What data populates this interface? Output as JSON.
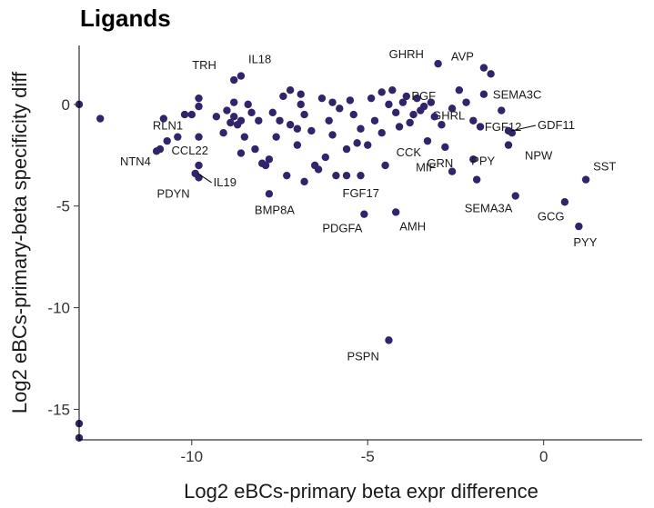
{
  "chart_data": {
    "type": "scatter",
    "title": "Ligands",
    "xlabel": "Log2 eBCs-primary beta expr difference",
    "ylabel": "Log2 eBCs-primary-beta specificity diff",
    "xlim": [
      -13.2,
      2.8
    ],
    "ylim": [
      -16.5,
      2.9
    ],
    "x_ticks": [
      -10,
      -5,
      0
    ],
    "y_ticks": [
      0,
      -5,
      -10,
      -15
    ],
    "point_color": "#33236a",
    "points": [
      {
        "x": -13.2,
        "y": 0.0
      },
      {
        "x": -12.6,
        "y": -0.7
      },
      {
        "x": -13.2,
        "y": -15.7
      },
      {
        "x": -13.2,
        "y": -16.4
      },
      {
        "x": -8.8,
        "y": 1.2,
        "label": "TRH"
      },
      {
        "x": -8.6,
        "y": 1.4,
        "label": "IL18"
      },
      {
        "x": -3.0,
        "y": 2.0,
        "label": "GHRH"
      },
      {
        "x": -1.7,
        "y": 1.8,
        "label": "AVP"
      },
      {
        "x": -1.5,
        "y": 1.5
      },
      {
        "x": -1.7,
        "y": 0.5,
        "label": "SEMA3C"
      },
      {
        "x": -3.6,
        "y": 0.3,
        "label": "PGF"
      },
      {
        "x": -2.6,
        "y": -0.2,
        "label": "GHRL"
      },
      {
        "x": -1.2,
        "y": -0.3
      },
      {
        "x": -0.9,
        "y": -1.4,
        "label": "FGF12"
      },
      {
        "x": -1.0,
        "y": -1.3,
        "label": "GDF11"
      },
      {
        "x": -1.0,
        "y": -2.0,
        "label": "NPW"
      },
      {
        "x": -3.3,
        "y": -1.8
      },
      {
        "x": -2.8,
        "y": -2.1,
        "label": "GRN"
      },
      {
        "x": -2.0,
        "y": -2.7
      },
      {
        "x": -1.9,
        "y": -3.7,
        "label": "PPY"
      },
      {
        "x": -2.6,
        "y": -3.3,
        "label": "MIF"
      },
      {
        "x": -0.8,
        "y": -4.5,
        "label": "SEMA3A"
      },
      {
        "x": 0.6,
        "y": -4.8,
        "label": "GCG"
      },
      {
        "x": 1.2,
        "y": -3.7,
        "label": "SST"
      },
      {
        "x": 1.0,
        "y": -6.0,
        "label": "PYY"
      },
      {
        "x": -4.5,
        "y": -3.0,
        "label": "CCK"
      },
      {
        "x": -5.2,
        "y": -3.5,
        "label": "FGF17"
      },
      {
        "x": -5.1,
        "y": -5.4,
        "label": "PDGFA"
      },
      {
        "x": -4.2,
        "y": -5.3,
        "label": "AMH"
      },
      {
        "x": -4.4,
        "y": -11.6,
        "label": "PSPN"
      },
      {
        "x": -7.8,
        "y": -4.4,
        "label": "BMP8A"
      },
      {
        "x": -10.8,
        "y": -0.7,
        "label": "RLN1"
      },
      {
        "x": -10.9,
        "y": -2.2,
        "label": "NTN4"
      },
      {
        "x": -9.8,
        "y": -3.0,
        "label": "CCL22"
      },
      {
        "x": -9.8,
        "y": -3.6,
        "label": "PDYN"
      },
      {
        "x": -9.9,
        "y": -3.4,
        "label": "IL19"
      },
      {
        "x": -11.0,
        "y": -2.3
      },
      {
        "x": -10.7,
        "y": -1.8
      },
      {
        "x": -10.4,
        "y": -1.6
      },
      {
        "x": -10.2,
        "y": -0.5
      },
      {
        "x": -10.0,
        "y": -0.5
      },
      {
        "x": -9.8,
        "y": 0.3
      },
      {
        "x": -9.8,
        "y": -0.1
      },
      {
        "x": -9.8,
        "y": -1.6
      },
      {
        "x": -9.0,
        "y": -0.3
      },
      {
        "x": -8.8,
        "y": -0.6
      },
      {
        "x": -8.7,
        "y": -1.0
      },
      {
        "x": -8.6,
        "y": -0.8
      },
      {
        "x": -8.5,
        "y": -1.6
      },
      {
        "x": -8.6,
        "y": -2.4
      },
      {
        "x": -8.4,
        "y": 0.0
      },
      {
        "x": -8.3,
        "y": -0.4
      },
      {
        "x": -8.1,
        "y": -0.8
      },
      {
        "x": -8.0,
        "y": -2.9
      },
      {
        "x": -7.8,
        "y": -2.7
      },
      {
        "x": -7.9,
        "y": -3.0
      },
      {
        "x": -7.7,
        "y": -0.4
      },
      {
        "x": -7.5,
        "y": -0.8
      },
      {
        "x": -7.4,
        "y": 0.4
      },
      {
        "x": -7.2,
        "y": 0.7
      },
      {
        "x": -7.2,
        "y": -1.0
      },
      {
        "x": -7.0,
        "y": -2.0
      },
      {
        "x": -6.9,
        "y": 0.0
      },
      {
        "x": -6.8,
        "y": -0.5
      },
      {
        "x": -6.6,
        "y": -1.3
      },
      {
        "x": -6.5,
        "y": -3.0
      },
      {
        "x": -6.4,
        "y": -3.2
      },
      {
        "x": -6.3,
        "y": 0.3
      },
      {
        "x": -6.1,
        "y": -0.8
      },
      {
        "x": -6.0,
        "y": -1.5
      },
      {
        "x": -5.9,
        "y": -3.5
      },
      {
        "x": -5.6,
        "y": -2.2
      },
      {
        "x": -5.6,
        "y": -3.5
      },
      {
        "x": -5.4,
        "y": -0.5
      },
      {
        "x": -5.2,
        "y": -1.2
      },
      {
        "x": -5.0,
        "y": -2.0
      },
      {
        "x": -4.8,
        "y": -0.8
      },
      {
        "x": -4.6,
        "y": 0.6
      },
      {
        "x": -4.4,
        "y": 0.0
      },
      {
        "x": -4.2,
        "y": -0.4
      },
      {
        "x": -4.1,
        "y": -1.1
      },
      {
        "x": -3.9,
        "y": 0.4
      },
      {
        "x": -3.7,
        "y": -0.5
      },
      {
        "x": -3.5,
        "y": -0.3
      },
      {
        "x": -3.2,
        "y": 0.1
      },
      {
        "x": -3.1,
        "y": -0.6
      },
      {
        "x": -2.9,
        "y": -1.0
      },
      {
        "x": -2.4,
        "y": 0.7
      },
      {
        "x": -2.2,
        "y": 0.1
      },
      {
        "x": -2.0,
        "y": -0.8
      },
      {
        "x": -1.8,
        "y": -1.1
      },
      {
        "x": -8.9,
        "y": -0.9
      },
      {
        "x": -7.3,
        "y": -3.5
      },
      {
        "x": -6.8,
        "y": -3.8
      },
      {
        "x": -9.1,
        "y": -1.4
      },
      {
        "x": -7.0,
        "y": -1.2
      },
      {
        "x": -6.2,
        "y": -2.6
      },
      {
        "x": -5.8,
        "y": -0.2
      },
      {
        "x": -4.9,
        "y": 0.3
      },
      {
        "x": -4.3,
        "y": 0.7
      },
      {
        "x": -3.8,
        "y": -0.9
      },
      {
        "x": -8.2,
        "y": -2.2
      },
      {
        "x": -9.3,
        "y": -0.6
      },
      {
        "x": -6.9,
        "y": 0.5
      },
      {
        "x": -5.3,
        "y": -1.9
      },
      {
        "x": -4.6,
        "y": -1.4
      },
      {
        "x": -8.8,
        "y": 0.1
      },
      {
        "x": -7.6,
        "y": -1.6
      },
      {
        "x": -6.0,
        "y": 0.1
      },
      {
        "x": -5.5,
        "y": 0.2
      },
      {
        "x": -4.0,
        "y": 0.1
      },
      {
        "x": -3.4,
        "y": -0.1
      }
    ]
  }
}
